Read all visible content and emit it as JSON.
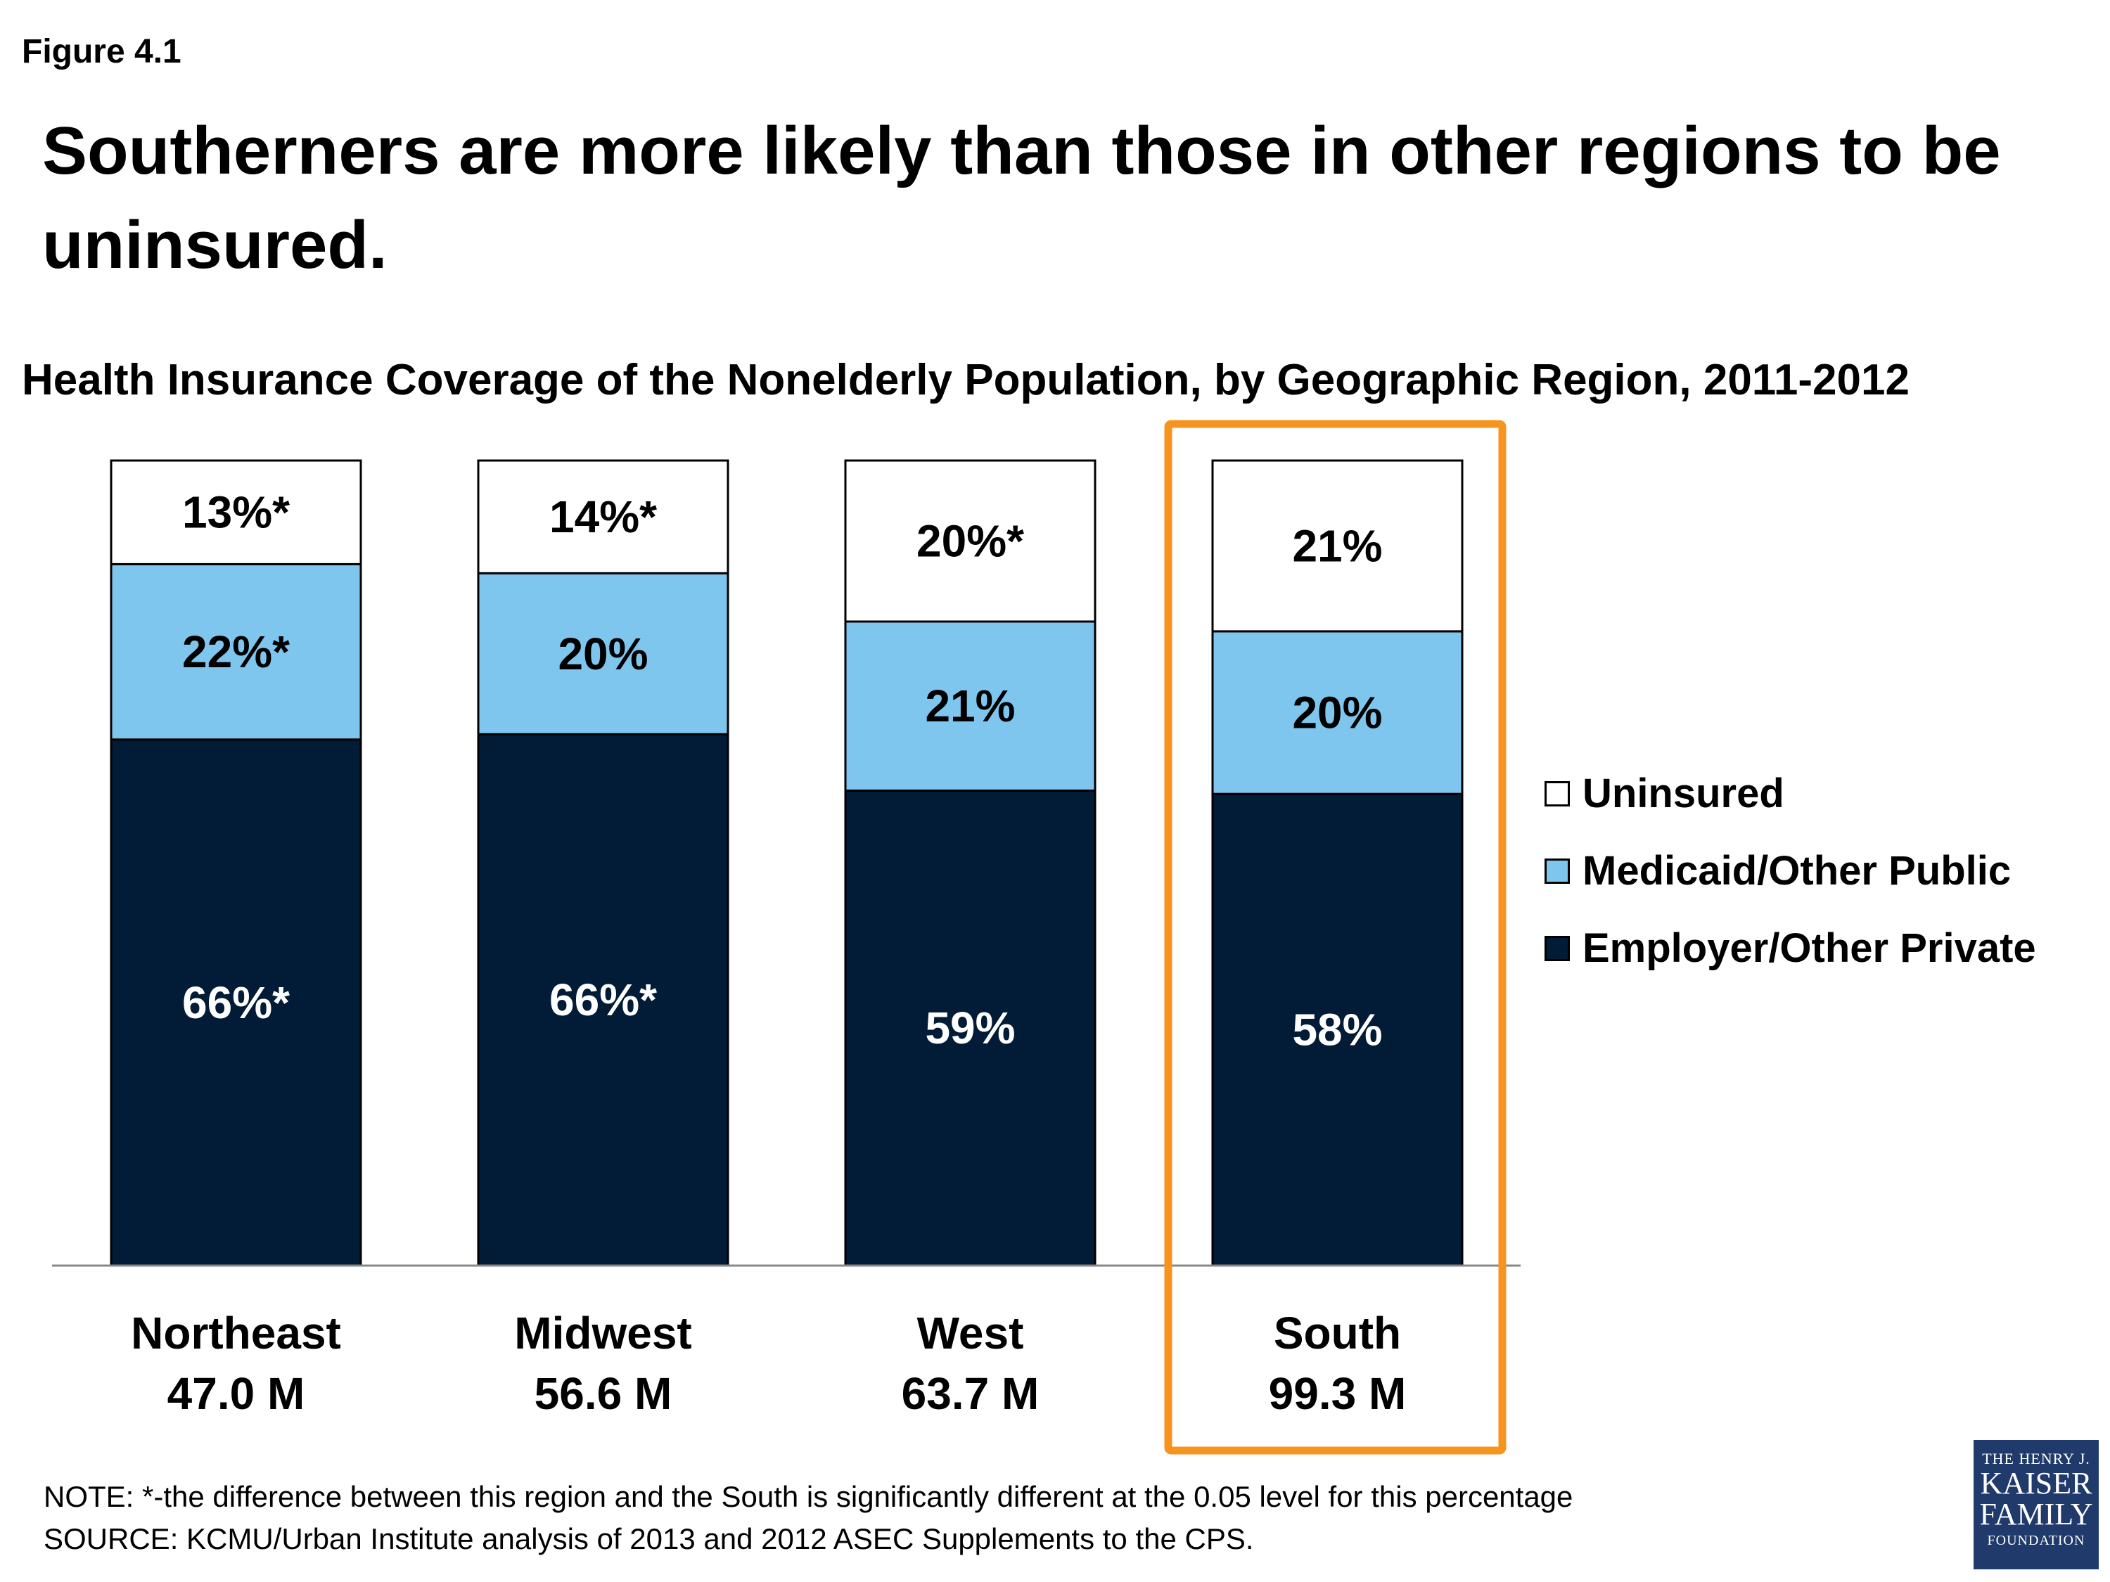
{
  "figure_label": "Figure 4.1",
  "headline": "Southerners are more likely than those in other regions to be uninsured.",
  "chart_data": {
    "type": "bar",
    "stacked": true,
    "title": "Health Insurance Coverage of the Nonelderly  Population, by Geographic Region, 2011-2012",
    "categories": [
      "Northeast",
      "Midwest",
      "West",
      "South"
    ],
    "category_sublabels": [
      "47.0 M",
      "56.6 M",
      "63.7 M",
      "99.3 M"
    ],
    "ylim": [
      0,
      100
    ],
    "highlighted_category": "South",
    "legend_position": "right",
    "series": [
      {
        "name": "Employer/Other Private",
        "color": "#021c38",
        "label_color": "#ffffff",
        "values": [
          66,
          66,
          59,
          58
        ],
        "labels": [
          "66%*",
          "66%*",
          "59%",
          "58%"
        ]
      },
      {
        "name": "Medicaid/Other Public",
        "color": "#7fc6ee",
        "label_color": "#000000",
        "values": [
          22,
          20,
          21,
          20
        ],
        "labels": [
          "22%*",
          "20%",
          "21%",
          "20%"
        ]
      },
      {
        "name": "Uninsured",
        "color": "#ffffff",
        "label_color": "#000000",
        "values": [
          13,
          14,
          20,
          21
        ],
        "labels": [
          "13%*",
          "14%*",
          "20%*",
          "21%"
        ]
      }
    ],
    "highlight_color": "#f7941d"
  },
  "legend": [
    {
      "label": "Uninsured",
      "color": "#ffffff"
    },
    {
      "label": "Medicaid/Other Public",
      "color": "#7fc6ee"
    },
    {
      "label": "Employer/Other Private",
      "color": "#021c38"
    }
  ],
  "note": "NOTE: *-the difference between this region and the South is significantly different at the 0.05 level for this percentage",
  "source": "SOURCE: KCMU/Urban Institute analysis of 2013 and 2012 ASEC Supplements to the CPS.",
  "logo": {
    "line1": "THE HENRY J.",
    "line2": "KAISER",
    "line3": "FAMILY",
    "line4": "FOUNDATION"
  }
}
